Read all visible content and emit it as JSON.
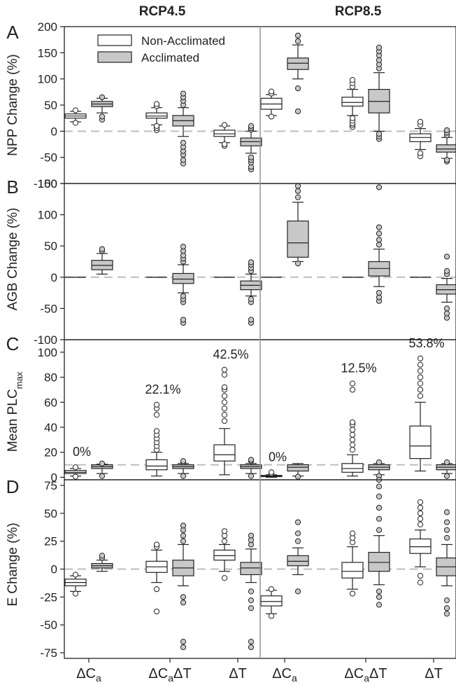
{
  "colors": {
    "non_acclimated": "#ffffff",
    "acclimated": "#c8c8c8",
    "axis": "#222222",
    "zero_line": "#bdbdbd",
    "divider": "#9a9a9a"
  },
  "figure": {
    "column_titles": [
      "RCP4.5",
      "RCP8.5"
    ],
    "x_categories": [
      "ΔC_a",
      "ΔC_aΔT",
      "ΔT"
    ],
    "legend": [
      "Non-Acclimated",
      "Acclimated"
    ]
  },
  "chart_data": [
    {
      "type": "box",
      "panel": "A",
      "ylabel": "NPP Change (%)",
      "ylim": [
        -100,
        200
      ],
      "yticks": [
        -100,
        -50,
        0,
        50,
        100,
        150,
        200
      ],
      "categories": [
        "ΔC_a",
        "ΔC_aΔT",
        "ΔT",
        "ΔC_a",
        "ΔC_aΔT",
        "ΔT"
      ],
      "groups": [
        "RCP4.5",
        "RCP4.5",
        "RCP4.5",
        "RCP8.5",
        "RCP8.5",
        "RCP8.5"
      ],
      "series": [
        {
          "name": "Non-Acclimated",
          "boxes": [
            {
              "q1": 25,
              "median": 29,
              "q3": 33,
              "wlo": 18,
              "whi": 38,
              "outliers": [
                16,
                40
              ]
            },
            {
              "q1": 25,
              "median": 29,
              "q3": 35,
              "wlo": 12,
              "whi": 45,
              "outliers": [
                2,
                6,
                10,
                48,
                52
              ]
            },
            {
              "q1": -10,
              "median": -5,
              "q3": 2,
              "wlo": -22,
              "whi": 10,
              "outliers": [
                -28,
                -25,
                12
              ]
            },
            {
              "q1": 42,
              "median": 52,
              "q3": 63,
              "wlo": 30,
              "whi": 70,
              "outliers": [
                28,
                72,
                76
              ]
            },
            {
              "q1": 48,
              "median": 55,
              "q3": 65,
              "wlo": 30,
              "whi": 80,
              "outliers": [
                8,
                12,
                15,
                20,
                25,
                85,
                92,
                98
              ]
            },
            {
              "q1": -20,
              "median": -12,
              "q3": -5,
              "wlo": -35,
              "whi": 5,
              "outliers": [
                -48,
                -42,
                12,
                18
              ]
            }
          ]
        },
        {
          "name": "Acclimated",
          "boxes": [
            {
              "q1": 47,
              "median": 52,
              "q3": 57,
              "wlo": 35,
              "whi": 63,
              "outliers": [
                22,
                28,
                65
              ]
            },
            {
              "q1": 10,
              "median": 20,
              "q3": 30,
              "wlo": -10,
              "whi": 45,
              "outliers": [
                -62,
                -55,
                -45,
                -38,
                -30,
                -22,
                50,
                58,
                65,
                72
              ]
            },
            {
              "q1": -28,
              "median": -20,
              "q3": -13,
              "wlo": -42,
              "whi": 0,
              "outliers": [
                -73,
                -68,
                -60,
                -55,
                -50,
                3,
                6,
                10
              ]
            },
            {
              "q1": 118,
              "median": 130,
              "q3": 140,
              "wlo": 100,
              "whi": 165,
              "outliers": [
                38,
                82,
                172,
                183
              ]
            },
            {
              "q1": 35,
              "median": 57,
              "q3": 80,
              "wlo": 0,
              "whi": 112,
              "outliers": [
                -15,
                -10,
                -5,
                120,
                128,
                136,
                145,
                153,
                160
              ]
            },
            {
              "q1": -40,
              "median": -34,
              "q3": -26,
              "wlo": -52,
              "whi": -12,
              "outliers": [
                -58,
                -55,
                -8,
                -3,
                2
              ]
            }
          ]
        }
      ]
    },
    {
      "type": "box",
      "panel": "B",
      "ylabel": "AGB Change (%)",
      "ylim": [
        -100,
        150
      ],
      "yticks": [
        -100,
        -50,
        0,
        50,
        100,
        150
      ],
      "categories": [
        "ΔC_a",
        "ΔC_aΔT",
        "ΔT",
        "ΔC_a",
        "ΔC_aΔT",
        "ΔT"
      ],
      "groups": [
        "RCP4.5",
        "RCP4.5",
        "RCP4.5",
        "RCP8.5",
        "RCP8.5",
        "RCP8.5"
      ],
      "series": [
        {
          "name": "Non-Acclimated",
          "boxes": [
            {
              "q1": 0,
              "median": 0,
              "q3": 0,
              "wlo": 0,
              "whi": 0,
              "outliers": []
            },
            {
              "q1": 0,
              "median": 0,
              "q3": 0,
              "wlo": 0,
              "whi": 0,
              "outliers": []
            },
            {
              "q1": 0,
              "median": 0,
              "q3": 0,
              "wlo": 0,
              "whi": 0,
              "outliers": []
            },
            {
              "q1": 0,
              "median": 0,
              "q3": 0,
              "wlo": 0,
              "whi": 0,
              "outliers": []
            },
            {
              "q1": 0,
              "median": 0,
              "q3": 0,
              "wlo": 0,
              "whi": 0,
              "outliers": []
            },
            {
              "q1": 0,
              "median": 0,
              "q3": 0,
              "wlo": 0,
              "whi": 0,
              "outliers": []
            }
          ]
        },
        {
          "name": "Acclimated",
          "boxes": [
            {
              "q1": 12,
              "median": 19,
              "q3": 27,
              "wlo": 5,
              "whi": 38,
              "outliers": [
                42,
                45
              ]
            },
            {
              "q1": -10,
              "median": -3,
              "q3": 6,
              "wlo": -25,
              "whi": 20,
              "outliers": [
                -73,
                -68,
                -40,
                -35,
                -30,
                25,
                30,
                35,
                42,
                49
              ]
            },
            {
              "q1": -20,
              "median": -13,
              "q3": -6,
              "wlo": -30,
              "whi": 5,
              "outliers": [
                -73,
                -68,
                -40,
                -35,
                10,
                15,
                20,
                24
              ]
            },
            {
              "q1": 32,
              "median": 55,
              "q3": 90,
              "wlo": 25,
              "whi": 120,
              "outliers": [
                22,
                128,
                138,
                146
              ]
            },
            {
              "q1": 2,
              "median": 14,
              "q3": 25,
              "wlo": -15,
              "whi": 45,
              "outliers": [
                -38,
                -32,
                -25,
                52,
                60,
                70,
                80,
                144
              ]
            },
            {
              "q1": -27,
              "median": -20,
              "q3": -12,
              "wlo": -40,
              "whi": -2,
              "outliers": [
                -65,
                -58,
                -50,
                5,
                10,
                33
              ]
            }
          ]
        }
      ]
    },
    {
      "type": "box",
      "panel": "C",
      "ylabel": "Mean PLC_max",
      "ylim": [
        -2,
        110
      ],
      "yticks": [
        0,
        20,
        40,
        60,
        80,
        100
      ],
      "annotations": [
        "0%",
        "22.1%",
        "42.5%",
        "0%",
        "12.5%",
        "53.8%"
      ],
      "categories": [
        "ΔC_a",
        "ΔC_aΔT",
        "ΔT",
        "ΔC_a",
        "ΔC_aΔT",
        "ΔT"
      ],
      "groups": [
        "RCP4.5",
        "RCP4.5",
        "RCP4.5",
        "RCP8.5",
        "RCP8.5",
        "RCP8.5"
      ],
      "series": [
        {
          "name": "Non-Acclimated",
          "boxes": [
            {
              "q1": 3,
              "median": 4,
              "q3": 5.5,
              "wlo": 1,
              "whi": 7,
              "outliers": [
                0.5,
                8
              ]
            },
            {
              "q1": 6,
              "median": 9,
              "q3": 14,
              "wlo": 1,
              "whi": 20,
              "outliers": [
                22,
                25,
                28,
                31,
                34,
                37,
                50,
                55,
                58
              ]
            },
            {
              "q1": 13,
              "median": 18,
              "q3": 26,
              "wlo": 2,
              "whi": 39,
              "outliers": [
                45,
                50,
                55,
                60,
                65,
                70,
                72,
                82,
                86
              ]
            },
            {
              "q1": 0.5,
              "median": 1,
              "q3": 1.5,
              "wlo": 0,
              "whi": 2,
              "outliers": [
                3,
                4
              ]
            },
            {
              "q1": 4,
              "median": 7,
              "q3": 11,
              "wlo": 1,
              "whi": 18,
              "outliers": [
                22,
                26,
                30,
                34,
                38,
                42,
                44,
                70,
                75
              ]
            },
            {
              "q1": 15,
              "median": 25,
              "q3": 41,
              "wlo": 5,
              "whi": 60,
              "outliers": [
                65,
                70,
                75,
                80,
                85,
                90,
                95
              ]
            }
          ]
        },
        {
          "name": "Acclimated",
          "boxes": [
            {
              "q1": 7,
              "median": 8.5,
              "q3": 10,
              "wlo": 3,
              "whi": 10.5,
              "outliers": [
                1,
                11
              ]
            },
            {
              "q1": 7,
              "median": 8.5,
              "q3": 10,
              "wlo": 3,
              "whi": 11,
              "outliers": [
                1,
                12,
                13
              ]
            },
            {
              "q1": 7,
              "median": 8.5,
              "q3": 10,
              "wlo": 3,
              "whi": 11,
              "outliers": [
                1,
                13,
                14
              ]
            },
            {
              "q1": 5,
              "median": 8,
              "q3": 10,
              "wlo": 1,
              "whi": 11,
              "outliers": [
                0.5
              ]
            },
            {
              "q1": 6,
              "median": 8,
              "q3": 10,
              "wlo": 2,
              "whi": 11,
              "outliers": [
                1,
                12
              ]
            },
            {
              "q1": 6,
              "median": 8,
              "q3": 10,
              "wlo": 3,
              "whi": 11,
              "outliers": [
                1,
                12
              ]
            }
          ]
        }
      ]
    },
    {
      "type": "box",
      "panel": "D",
      "ylabel": "E Change (%)",
      "ylim": [
        -80,
        80
      ],
      "yticks": [
        -75,
        -50,
        -25,
        0,
        25,
        50,
        75
      ],
      "categories": [
        "ΔC_a",
        "ΔC_aΔT",
        "ΔT",
        "ΔC_a",
        "ΔC_aΔT",
        "ΔT"
      ],
      "groups": [
        "RCP4.5",
        "RCP4.5",
        "RCP4.5",
        "RCP8.5",
        "RCP8.5",
        "RCP8.5"
      ],
      "series": [
        {
          "name": "Non-Acclimated",
          "boxes": [
            {
              "q1": -15,
              "median": -12,
              "q3": -9,
              "wlo": -20,
              "whi": -6,
              "outliers": [
                -22,
                -5
              ]
            },
            {
              "q1": -3,
              "median": 2,
              "q3": 7,
              "wlo": -12,
              "whi": 17,
              "outliers": [
                -38,
                -18,
                20,
                22
              ]
            },
            {
              "q1": 8,
              "median": 12,
              "q3": 17,
              "wlo": -2,
              "whi": 22,
              "outliers": [
                -8,
                25,
                30,
                34
              ]
            },
            {
              "q1": -33,
              "median": -29,
              "q3": -24,
              "wlo": -40,
              "whi": -19,
              "outliers": [
                -42,
                -18
              ]
            },
            {
              "q1": -8,
              "median": -2,
              "q3": 6,
              "wlo": -18,
              "whi": 20,
              "outliers": [
                -22,
                24,
                28,
                32
              ]
            },
            {
              "q1": 14,
              "median": 20,
              "q3": 27,
              "wlo": 2,
              "whi": 35,
              "outliers": [
                -12,
                -6,
                40,
                45,
                50,
                55,
                60
              ]
            }
          ]
        },
        {
          "name": "Acclimated",
          "boxes": [
            {
              "q1": 1,
              "median": 3,
              "q3": 5,
              "wlo": -2,
              "whi": 8,
              "outliers": [
                10,
                12
              ]
            },
            {
              "q1": -6,
              "median": 1,
              "q3": 8,
              "wlo": -15,
              "whi": 22,
              "outliers": [
                -70,
                -65,
                -30,
                -25,
                25,
                30,
                35,
                39
              ]
            },
            {
              "q1": -5,
              "median": 1,
              "q3": 6,
              "wlo": -12,
              "whi": 18,
              "outliers": [
                -70,
                -65,
                -35,
                -28,
                -20,
                22,
                26,
                30
              ]
            },
            {
              "q1": 3,
              "median": 7,
              "q3": 12,
              "wlo": -5,
              "whi": 19,
              "outliers": [
                -20,
                25,
                32,
                42
              ]
            },
            {
              "q1": -2,
              "median": 6,
              "q3": 15,
              "wlo": -14,
              "whi": 30,
              "outliers": [
                -32,
                -25,
                -20,
                35,
                45,
                55,
                65,
                74,
                80
              ]
            },
            {
              "q1": -6,
              "median": 2,
              "q3": 10,
              "wlo": -15,
              "whi": 22,
              "outliers": [
                -40,
                -35,
                -28,
                28,
                35,
                42,
                51
              ]
            }
          ]
        }
      ]
    }
  ]
}
